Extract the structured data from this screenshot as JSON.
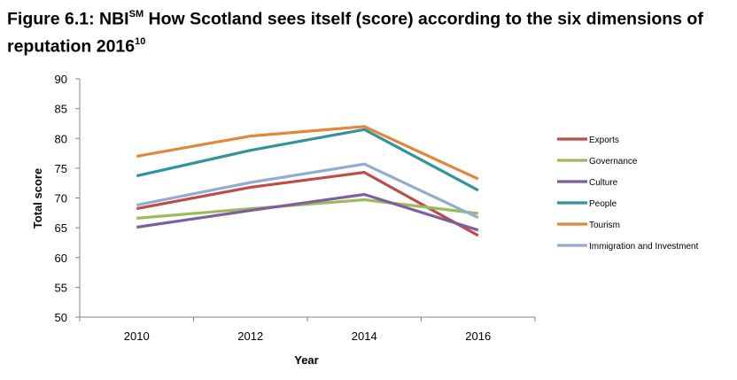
{
  "chart_data": {
    "type": "line",
    "title_prefix": "Figure 6.1: NBI",
    "title_superscript": "SM",
    "title_middle": " How Scotland sees itself (score) according to the six dimensions of reputation 2016",
    "title_footnote": "10",
    "xlabel": "Year",
    "ylabel": "Total score",
    "categories": [
      "2010",
      "2012",
      "2014",
      "2016"
    ],
    "ylim": [
      50,
      90
    ],
    "yticks": [
      50,
      55,
      60,
      65,
      70,
      75,
      80,
      85,
      90
    ],
    "grid": false,
    "legend_position": "right",
    "series": [
      {
        "name": "Exports",
        "color": "#be4b48",
        "values": [
          68.2,
          71.8,
          74.3,
          63.7
        ]
      },
      {
        "name": "Governance",
        "color": "#9bbb59",
        "values": [
          66.6,
          68.2,
          69.7,
          67.4
        ]
      },
      {
        "name": "Culture",
        "color": "#7d5fa0",
        "values": [
          65.1,
          67.9,
          70.6,
          64.6
        ]
      },
      {
        "name": "People",
        "color": "#31949b",
        "values": [
          73.7,
          78.0,
          81.5,
          71.3
        ]
      },
      {
        "name": "Tourism",
        "color": "#e0883c",
        "values": [
          77.0,
          80.4,
          82.0,
          73.2
        ]
      },
      {
        "name": "Immigration and Investment",
        "color": "#92abd0",
        "values": [
          68.8,
          72.6,
          75.7,
          66.7
        ]
      }
    ]
  }
}
